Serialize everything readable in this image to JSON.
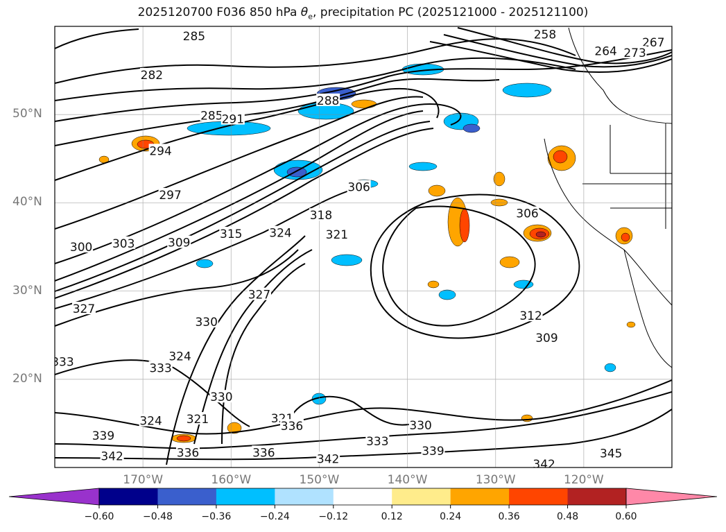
{
  "title": {
    "prefix": "2025120700 F036 850 hPa ",
    "theta": "θ",
    "sub": "e",
    "suffix": ", precipitation PC (2025121000 - 2025121100)"
  },
  "chart_data": {
    "type": "map-contour",
    "projection": "plate carree",
    "extent": {
      "lon": [
        -180,
        -110
      ],
      "lat": [
        10,
        60
      ]
    },
    "lat_ticks": [
      {
        "value": 20,
        "label": "20°N"
      },
      {
        "value": 30,
        "label": "30°N"
      },
      {
        "value": 40,
        "label": "40°N"
      },
      {
        "value": 50,
        "label": "50°N"
      }
    ],
    "lon_ticks": [
      {
        "value": -170,
        "label": "170°W"
      },
      {
        "value": -160,
        "label": "160°W"
      },
      {
        "value": -150,
        "label": "150°W"
      },
      {
        "value": -140,
        "label": "140°W"
      },
      {
        "value": -130,
        "label": "130°W"
      },
      {
        "value": -120,
        "label": "120°W"
      }
    ],
    "grid": true,
    "contour_labels": [
      {
        "text": "285",
        "lon": -164.2,
        "lat": 58.9
      },
      {
        "text": "282",
        "lon": -169.0,
        "lat": 54.5
      },
      {
        "text": "285",
        "lon": -162.2,
        "lat": 49.9
      },
      {
        "text": "291",
        "lon": -159.8,
        "lat": 49.5
      },
      {
        "text": "288",
        "lon": -149.0,
        "lat": 51.6
      },
      {
        "text": "294",
        "lon": -168.0,
        "lat": 45.9
      },
      {
        "text": "297",
        "lon": -166.9,
        "lat": 40.9
      },
      {
        "text": "300",
        "lon": -177.0,
        "lat": 35.0
      },
      {
        "text": "303",
        "lon": -172.2,
        "lat": 35.4
      },
      {
        "text": "309",
        "lon": -165.9,
        "lat": 35.5
      },
      {
        "text": "315",
        "lon": -160.0,
        "lat": 36.5
      },
      {
        "text": "324",
        "lon": -154.4,
        "lat": 36.6
      },
      {
        "text": "318",
        "lon": -149.8,
        "lat": 38.6
      },
      {
        "text": "306",
        "lon": -145.5,
        "lat": 41.8
      },
      {
        "text": "321",
        "lon": -148.0,
        "lat": 36.4
      },
      {
        "text": "306",
        "lon": -126.4,
        "lat": 38.8
      },
      {
        "text": "327",
        "lon": -176.7,
        "lat": 28.0
      },
      {
        "text": "327",
        "lon": -156.8,
        "lat": 29.6
      },
      {
        "text": "330",
        "lon": -162.8,
        "lat": 26.5
      },
      {
        "text": "312",
        "lon": -126.0,
        "lat": 27.2
      },
      {
        "text": "309",
        "lon": -124.2,
        "lat": 24.7
      },
      {
        "text": "333",
        "lon": -179.1,
        "lat": 22.0
      },
      {
        "text": "333",
        "lon": -168.0,
        "lat": 21.3
      },
      {
        "text": "324",
        "lon": -165.8,
        "lat": 22.6
      },
      {
        "text": "330",
        "lon": -161.1,
        "lat": 18.0
      },
      {
        "text": "324",
        "lon": -169.1,
        "lat": 15.3
      },
      {
        "text": "321",
        "lon": -163.8,
        "lat": 15.5
      },
      {
        "text": "321",
        "lon": -154.2,
        "lat": 15.6
      },
      {
        "text": "336",
        "lon": -153.1,
        "lat": 14.7
      },
      {
        "text": "330",
        "lon": -138.5,
        "lat": 14.8
      },
      {
        "text": "339",
        "lon": -174.5,
        "lat": 13.6
      },
      {
        "text": "333",
        "lon": -143.4,
        "lat": 13.0
      },
      {
        "text": "342",
        "lon": -173.5,
        "lat": 11.3
      },
      {
        "text": "336",
        "lon": -164.9,
        "lat": 11.7
      },
      {
        "text": "336",
        "lon": -156.3,
        "lat": 11.7
      },
      {
        "text": "342",
        "lon": -149.0,
        "lat": 11.0
      },
      {
        "text": "339",
        "lon": -137.1,
        "lat": 11.9
      },
      {
        "text": "342",
        "lon": -124.5,
        "lat": 10.4
      },
      {
        "text": "345",
        "lon": -116.9,
        "lat": 11.6
      },
      {
        "text": "264",
        "lon": -117.5,
        "lat": 57.2
      },
      {
        "text": "267",
        "lon": -112.1,
        "lat": 58.2
      },
      {
        "text": "273",
        "lon": -114.2,
        "lat": 57.0
      },
      {
        "text": "258",
        "lon": -124.4,
        "lat": 59.1
      }
    ],
    "colorbar": {
      "extend": "both",
      "ticks": [
        "−0.60",
        "−0.48",
        "−0.36",
        "−0.24",
        "−0.12",
        "0.12",
        "0.24",
        "0.36",
        "0.48",
        "0.60"
      ],
      "colors": [
        "#9932CC",
        "#00008B",
        "#3A5FCD",
        "#00BFFF",
        "#B0E2FF",
        "#FFFFFF",
        "#FFEC8B",
        "#FFA500",
        "#FF4500",
        "#B22222",
        "#FF88A8"
      ]
    }
  }
}
